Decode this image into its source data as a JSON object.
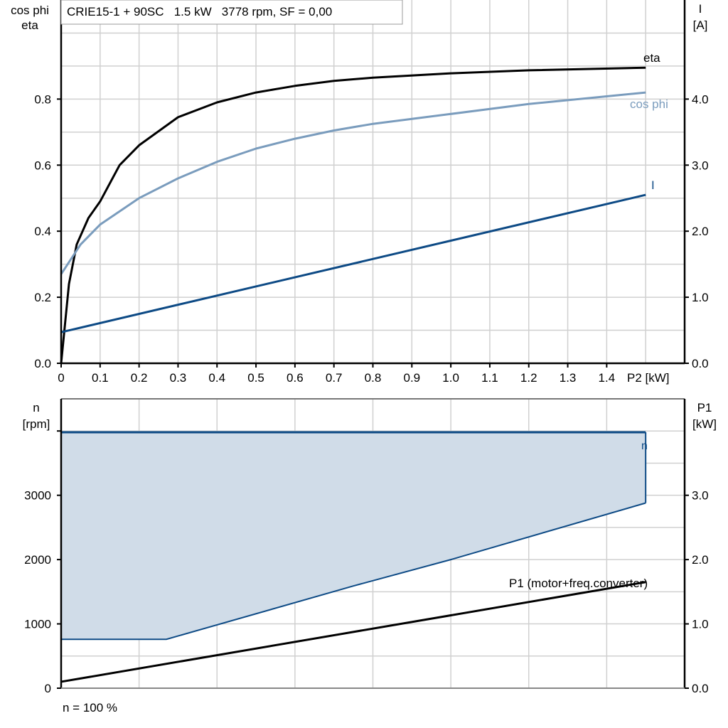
{
  "chart_data": [
    {
      "type": "line",
      "title": "CRIE15-1 + 90SC   1.5 kW   3778 rpm, SF = 0,00",
      "xlabel": "P2 [kW]",
      "ylabel_left": [
        "cos phi",
        "eta"
      ],
      "ylabel_right": [
        "I",
        "[A]"
      ],
      "xlim": [
        0,
        1.6
      ],
      "ylim_left": [
        0,
        1.1
      ],
      "ylim_right": [
        0,
        5.5
      ],
      "x_ticks": [
        "0",
        "0.1",
        "0.2",
        "0.3",
        "0.4",
        "0.5",
        "0.6",
        "0.7",
        "0.8",
        "0.9",
        "1.0",
        "1.1",
        "1.2",
        "1.3",
        "1.4"
      ],
      "y_ticks_left": [
        "0.0",
        "0.2",
        "0.4",
        "0.6",
        "0.8"
      ],
      "y_ticks_right": [
        "0.0",
        "1.0",
        "2.0",
        "3.0",
        "4.0"
      ],
      "grid": true,
      "series": [
        {
          "name": "eta",
          "axis": "left",
          "color": "#000000",
          "x": [
            0,
            0.02,
            0.04,
            0.07,
            0.1,
            0.15,
            0.2,
            0.3,
            0.4,
            0.5,
            0.6,
            0.7,
            0.8,
            1.0,
            1.2,
            1.5
          ],
          "y": [
            0,
            0.24,
            0.36,
            0.44,
            0.49,
            0.6,
            0.66,
            0.745,
            0.79,
            0.82,
            0.84,
            0.855,
            0.865,
            0.878,
            0.887,
            0.895
          ]
        },
        {
          "name": "cos phi",
          "axis": "left",
          "color": "#7a9cbd",
          "x": [
            0,
            0.05,
            0.1,
            0.2,
            0.3,
            0.4,
            0.5,
            0.6,
            0.7,
            0.8,
            1.0,
            1.2,
            1.5
          ],
          "y": [
            0.27,
            0.36,
            0.42,
            0.5,
            0.56,
            0.61,
            0.65,
            0.68,
            0.705,
            0.725,
            0.755,
            0.785,
            0.82
          ]
        },
        {
          "name": "I",
          "axis": "right",
          "color": "#0d4a85",
          "x": [
            0,
            1.5
          ],
          "y": [
            0.47,
            2.55
          ]
        }
      ]
    },
    {
      "type": "area",
      "xlim": [
        0,
        1.6
      ],
      "ylabel_left": [
        "n",
        "[rpm]"
      ],
      "ylabel_right": [
        "P1",
        "[kW]"
      ],
      "ylim_left": [
        0,
        4500
      ],
      "ylim_right": [
        0,
        4.5
      ],
      "y_ticks_left": [
        "0",
        "1000",
        "2000",
        "3000"
      ],
      "y_ticks_right": [
        "0.0",
        "1.0",
        "2.0",
        "3.0"
      ],
      "grid": true,
      "footer": "n = 100 %",
      "series": [
        {
          "name": "n",
          "axis": "left",
          "color": "#0d4a85",
          "fill": "#d0dce8",
          "upper": {
            "x": [
              0,
              1.5
            ],
            "y": [
              3980,
              3980
            ]
          },
          "lower": {
            "x": [
              0,
              0.27,
              0.75,
              1.0,
              1.5
            ],
            "y": [
              760,
              760,
              1590,
              2000,
              2880
            ]
          }
        },
        {
          "name": "P1 (motor+freq.converter)",
          "axis": "right",
          "color": "#000000",
          "x": [
            0,
            1.5
          ],
          "y": [
            0.1,
            1.65
          ]
        }
      ]
    }
  ]
}
